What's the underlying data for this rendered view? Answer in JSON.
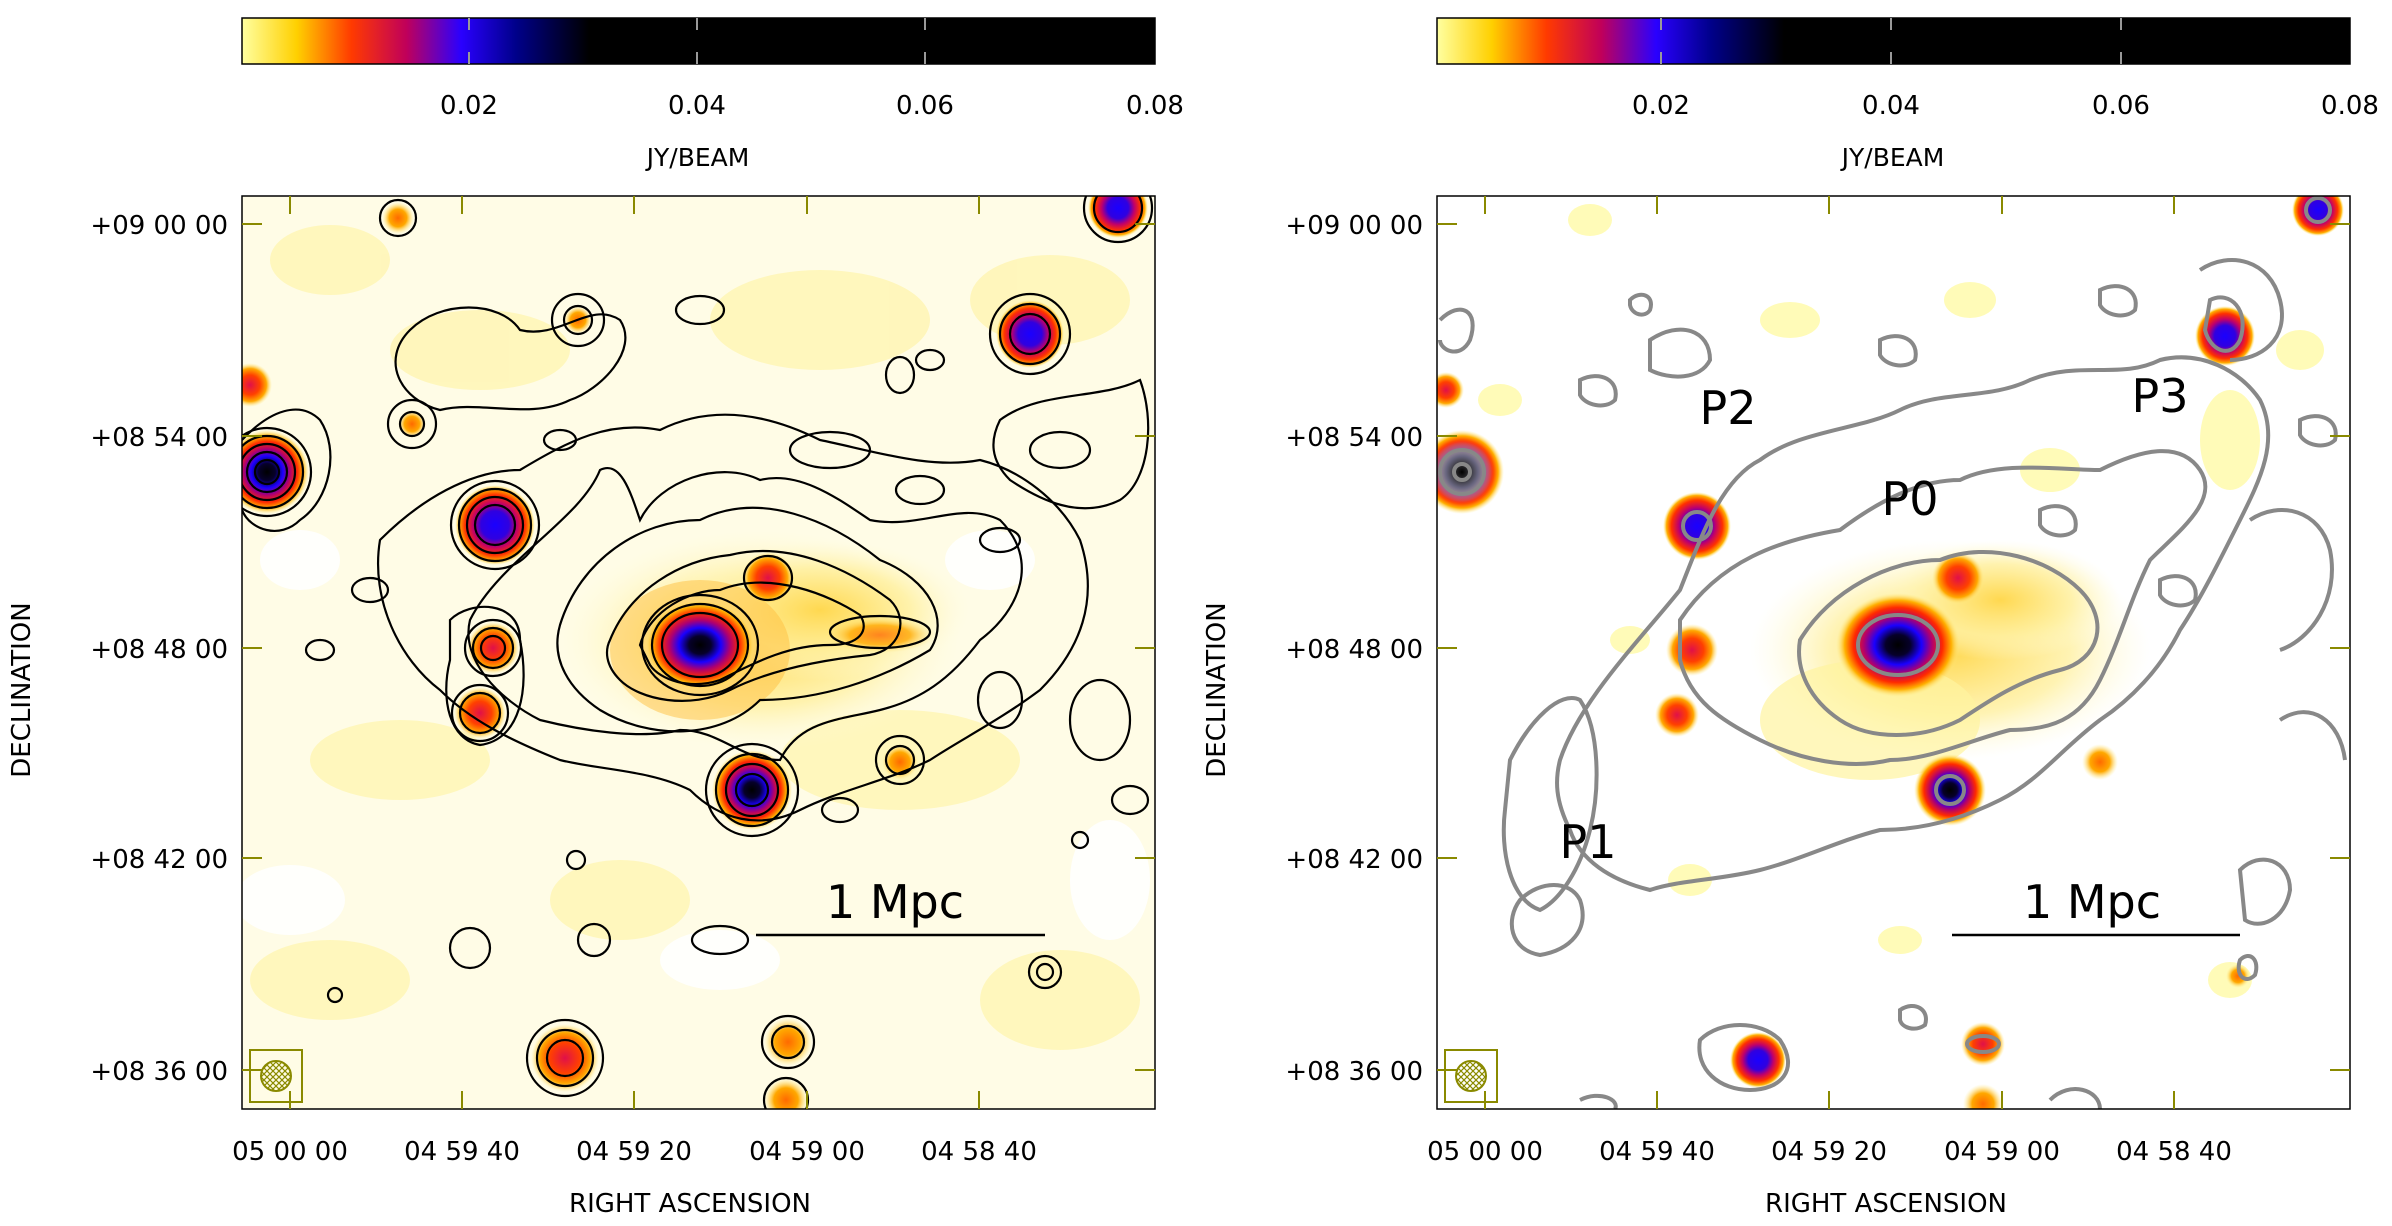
{
  "colorbar": {
    "ticks": [
      "0.02",
      "0.04",
      "0.06",
      "0.08"
    ],
    "unit_label": "JY/BEAM"
  },
  "axes": {
    "y_title": "DECLINATION",
    "x_title": "RIGHT ASCENSION",
    "dec_ticks": [
      "+09 00 00",
      "+08 54 00",
      "+08 48 00",
      "+08 42 00",
      "+08 36 00"
    ],
    "ra_ticks": [
      "05 00 00",
      "04 59 40",
      "04 59 20",
      "04 59 00",
      "04 58 40"
    ]
  },
  "scale_bar_label": "1 Mpc",
  "right_panel_labels": {
    "P0": "P0",
    "P1": "P1",
    "P2": "P2",
    "P3": "P3"
  },
  "colors": {
    "colormap": [
      "#ffffff",
      "#fff9b0",
      "#ffd24a",
      "#ff8a00",
      "#ff2a00",
      "#b0006a",
      "#1400ff",
      "#000000"
    ],
    "contours_left": "#000000",
    "contours_right": "#888888",
    "axis_tick": "#8a8a00",
    "beam": "#8a8a00"
  }
}
